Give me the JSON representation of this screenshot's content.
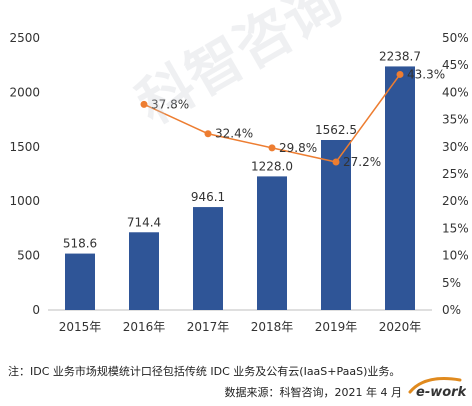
{
  "chart_data": {
    "type": "bar",
    "categories": [
      "2015年",
      "2016年",
      "2017年",
      "2018年",
      "2019年",
      "2020年"
    ],
    "series": [
      {
        "values": [
          518.6,
          714.4,
          946.1,
          1228.0,
          1562.5,
          2238.7
        ],
        "labels": [
          "518.6",
          "714.4",
          "946.1",
          "1228.0",
          "1562.5",
          "2238.7"
        ]
      },
      {
        "values": [
          null,
          37.8,
          32.4,
          29.8,
          27.2,
          43.3
        ],
        "labels": [
          "",
          "37.8%",
          "32.4%",
          "29.8%",
          "27.2%",
          "43.3%"
        ]
      }
    ],
    "ylim": [
      0,
      2500
    ],
    "y_ticks": [
      0,
      500,
      1000,
      1500,
      2000,
      2500
    ],
    "y2lim": [
      0,
      50
    ],
    "y2_ticks": [
      "0%",
      "5%",
      "10%",
      "15%",
      "20%",
      "25%",
      "30%",
      "35%",
      "40%",
      "45%",
      "50%"
    ],
    "title": "",
    "xlabel": "",
    "ylabel": "",
    "grid": false,
    "colors": {
      "bar": "#2f5597",
      "line": "#ed7d31"
    }
  },
  "footnote": "注：IDC 业务市场规模统计口径包括传统 IDC 业务及公有云(IaaS+PaaS)业务。",
  "source": "数据来源：科智咨询，2021 年 4 月",
  "watermark": "科智咨询",
  "logo_text": "e-works"
}
